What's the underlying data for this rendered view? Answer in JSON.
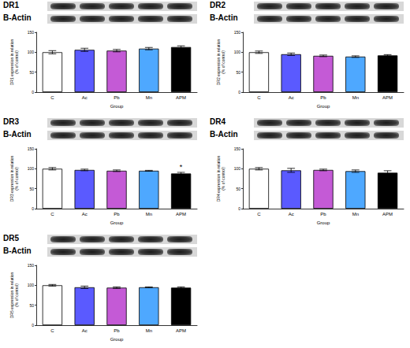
{
  "chart_data": [
    {
      "type": "bar",
      "title": "DR1",
      "reference_blot": "B-Actin",
      "categories": [
        "C",
        "Ac",
        "Pb",
        "Mn",
        "APM"
      ],
      "values": [
        100,
        106,
        104,
        109,
        113
      ],
      "errors": [
        4,
        4,
        3,
        3,
        3
      ],
      "colors": [
        "#ffffff",
        "#5a5aff",
        "#c45ad6",
        "#4ea8ff",
        "#000000"
      ],
      "xlabel": "Group",
      "ylabel": "DR1 expression in relation\n(% of control)",
      "ylim": [
        0,
        150
      ],
      "yticks": [
        0,
        50,
        100,
        150
      ]
    },
    {
      "type": "bar",
      "title": "DR2",
      "reference_blot": "B-Actin",
      "categories": [
        "C",
        "Ac",
        "Pb",
        "Mn",
        "APM"
      ],
      "values": [
        100,
        95,
        91,
        89,
        92
      ],
      "errors": [
        3,
        3,
        2,
        2,
        2
      ],
      "colors": [
        "#ffffff",
        "#5a5aff",
        "#c45ad6",
        "#4ea8ff",
        "#000000"
      ],
      "xlabel": "Group",
      "ylabel": "DR2 expression in relation\n(% of control)",
      "ylim": [
        0,
        150
      ],
      "yticks": [
        0,
        50,
        100,
        150
      ]
    },
    {
      "type": "bar",
      "title": "DR3",
      "reference_blot": "B-Actin",
      "categories": [
        "C",
        "Ac",
        "Pb",
        "Mn",
        "APM"
      ],
      "values": [
        100,
        97,
        95,
        95,
        88
      ],
      "errors": [
        3,
        2,
        2,
        1,
        3
      ],
      "colors": [
        "#ffffff",
        "#5a5aff",
        "#c45ad6",
        "#4ea8ff",
        "#000000"
      ],
      "xlabel": "Group",
      "ylabel": "DR3 expression in relation\n(% of control)",
      "ylim": [
        0,
        150
      ],
      "yticks": [
        0,
        50,
        100,
        150
      ],
      "annotations": [
        {
          "category": "APM",
          "text": "*"
        }
      ]
    },
    {
      "type": "bar",
      "title": "DR4",
      "reference_blot": "B-Actin",
      "categories": [
        "C",
        "Ac",
        "Pb",
        "Mn",
        "APM"
      ],
      "values": [
        100,
        96,
        97,
        94,
        90
      ],
      "errors": [
        3,
        5,
        2,
        3,
        5
      ],
      "colors": [
        "#ffffff",
        "#5a5aff",
        "#c45ad6",
        "#4ea8ff",
        "#000000"
      ],
      "xlabel": "Group",
      "ylabel": "DR4 expression in relation\n(% of control)",
      "ylim": [
        0,
        150
      ],
      "yticks": [
        0,
        50,
        100,
        150
      ]
    },
    {
      "type": "bar",
      "title": "DR5",
      "reference_blot": "B-Actin",
      "categories": [
        "C",
        "Ac",
        "Pb",
        "Mn",
        "APM"
      ],
      "values": [
        100,
        95,
        94,
        95,
        94
      ],
      "errors": [
        2,
        3,
        2,
        1,
        2
      ],
      "colors": [
        "#ffffff",
        "#5a5aff",
        "#c45ad6",
        "#4ea8ff",
        "#000000"
      ],
      "xlabel": "Group",
      "ylabel": "DR5 expression in relation\n(% of control)",
      "ylim": [
        0,
        150
      ],
      "yticks": [
        0,
        50,
        100,
        150
      ]
    }
  ]
}
